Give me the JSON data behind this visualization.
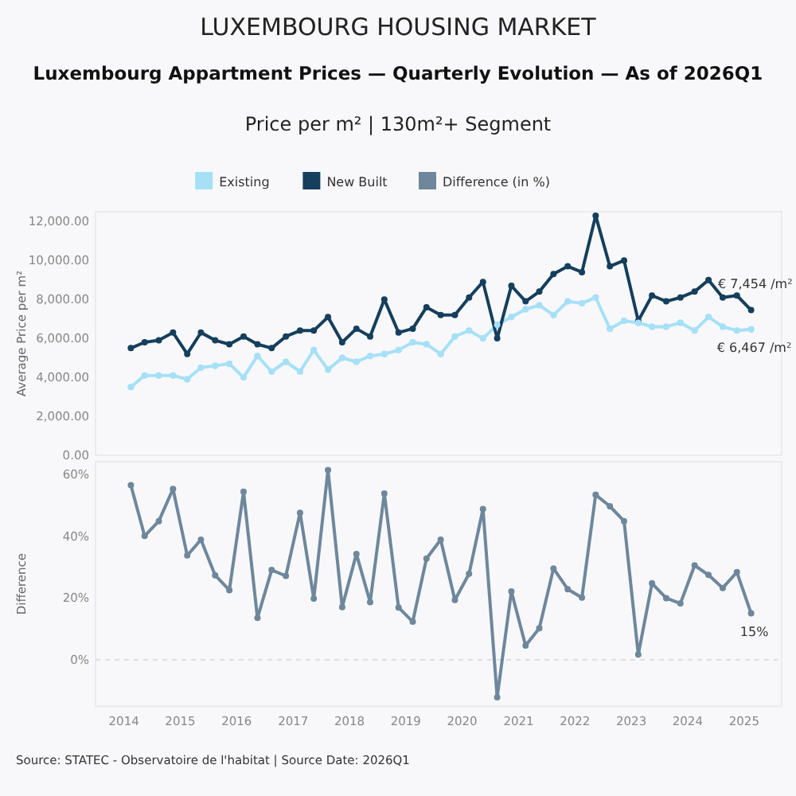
{
  "chart_data": [
    {
      "type": "line",
      "title": "LUXEMBOURG HOUSING MARKET",
      "subtitle": "Luxembourg Appartment Prices — Quarterly Evolution — As of 2026Q1",
      "annotations": [
        "Price per m² | 130m²+ Segment"
      ],
      "ylabel": "Average Price per m²",
      "legend": "top",
      "marker": "circle",
      "tick_labels": "y",
      "x": [
        "2014-02-15",
        "2014-05-15",
        "2014-08-15",
        "2014-11-15",
        "2015-02-15",
        "2015-05-15",
        "2015-08-15",
        "2015-11-15",
        "2016-02-15",
        "2016-05-15",
        "2016-08-15",
        "2016-11-15",
        "2017-02-15",
        "2017-05-15",
        "2017-08-15",
        "2017-11-15",
        "2018-02-15",
        "2018-05-15",
        "2018-08-15",
        "2018-11-15",
        "2019-02-15",
        "2019-05-15",
        "2019-08-15",
        "2019-11-15",
        "2020-02-15",
        "2020-05-15",
        "2020-08-15",
        "2020-11-15",
        "2021-02-15",
        "2021-05-15",
        "2021-08-15",
        "2021-11-15",
        "2022-02-15",
        "2022-05-15",
        "2022-08-15",
        "2022-11-15",
        "2023-02-15",
        "2023-05-15",
        "2023-08-15",
        "2023-11-15",
        "2024-02-15",
        "2024-05-15",
        "2024-08-15",
        "2024-11-15",
        "2025-02-15"
      ],
      "xlim": [
        "2013-07-01",
        "2025-09-01"
      ],
      "xticks": [
        "2014",
        "2015",
        "2016",
        "2017",
        "2018",
        "2019",
        "2020",
        "2021",
        "2022",
        "2023",
        "2024",
        "2025"
      ],
      "ylim": [
        0,
        12500
      ],
      "yticks": [
        {
          "value": 0,
          "label": "0.00"
        },
        {
          "value": 2000,
          "label": "2,000.00"
        },
        {
          "value": 4000,
          "label": "4,000.00"
        },
        {
          "value": 6000,
          "label": "6,000.00"
        },
        {
          "value": 8000,
          "label": "8,000.00"
        },
        {
          "value": 10000,
          "label": "10,000.00"
        },
        {
          "value": 12000,
          "label": "12,000.00"
        }
      ],
      "series": [
        {
          "name": "Existing",
          "color": "#a6e0f7",
          "values": [
            3500,
            4100,
            4100,
            4100,
            3900,
            4500,
            4600,
            4700,
            4000,
            5100,
            4300,
            4800,
            4300,
            5400,
            4400,
            5000,
            4800,
            5100,
            5200,
            5400,
            5800,
            5700,
            5200,
            6100,
            6400,
            6000,
            6700,
            7100,
            7500,
            7700,
            7200,
            7900,
            7800,
            8100,
            6500,
            6900,
            6800,
            6600,
            6600,
            6800,
            6400,
            7100,
            6600,
            6400,
            6467
          ],
          "value_labels": [
            null,
            null,
            null,
            null,
            null,
            null,
            null,
            null,
            null,
            null,
            null,
            null,
            null,
            null,
            null,
            null,
            null,
            null,
            null,
            null,
            null,
            null,
            null,
            null,
            null,
            null,
            null,
            null,
            null,
            null,
            null,
            null,
            null,
            null,
            null,
            null,
            null,
            null,
            null,
            null,
            null,
            null,
            null,
            null,
            "€ 6,467 /m²"
          ]
        },
        {
          "name": "New Built",
          "color": "#153f5c",
          "values": [
            5500,
            5800,
            5900,
            6300,
            5200,
            6300,
            5900,
            5700,
            6100,
            5700,
            5500,
            6100,
            6400,
            6400,
            7100,
            5800,
            6500,
            6100,
            8000,
            6300,
            6500,
            7600,
            7200,
            7200,
            8100,
            8900,
            6000,
            8700,
            7900,
            8400,
            9300,
            9700,
            9400,
            12300,
            9700,
            10000,
            6900,
            8200,
            7900,
            8100,
            8400,
            9000,
            8100,
            8200,
            7454
          ],
          "value_labels": [
            null,
            null,
            null,
            null,
            null,
            null,
            null,
            null,
            null,
            null,
            null,
            null,
            null,
            null,
            null,
            null,
            null,
            null,
            null,
            null,
            null,
            null,
            null,
            null,
            null,
            null,
            null,
            null,
            null,
            null,
            null,
            null,
            null,
            null,
            null,
            null,
            null,
            null,
            null,
            null,
            null,
            null,
            null,
            null,
            "€ 7,454 /m²"
          ]
        }
      ]
    },
    {
      "type": "line",
      "ylabel": "Difference",
      "legend": "top",
      "marker": "circle",
      "annotations": [
        "Source: STATEC - Observatoire de l'habitat | Source Date: 2026Q1"
      ],
      "x": [
        "2014-02-15",
        "2014-05-15",
        "2014-08-15",
        "2014-11-15",
        "2015-02-15",
        "2015-05-15",
        "2015-08-15",
        "2015-11-15",
        "2016-02-15",
        "2016-05-15",
        "2016-08-15",
        "2016-11-15",
        "2017-02-15",
        "2017-05-15",
        "2017-08-15",
        "2017-11-15",
        "2018-02-15",
        "2018-05-15",
        "2018-08-15",
        "2018-11-15",
        "2019-02-15",
        "2019-05-15",
        "2019-08-15",
        "2019-11-15",
        "2020-02-15",
        "2020-05-15",
        "2020-08-15",
        "2020-11-15",
        "2021-02-15",
        "2021-05-15",
        "2021-08-15",
        "2021-11-15",
        "2022-02-15",
        "2022-05-15",
        "2022-08-15",
        "2022-11-15",
        "2023-02-15",
        "2023-05-15",
        "2023-08-15",
        "2023-11-15",
        "2024-02-15",
        "2024-05-15",
        "2024-08-15",
        "2024-11-15",
        "2025-02-15"
      ],
      "xlim": [
        "2013-07-01",
        "2025-09-01"
      ],
      "xticks": [
        "2014",
        "2015",
        "2016",
        "2017",
        "2018",
        "2019",
        "2020",
        "2021",
        "2022",
        "2023",
        "2024",
        "2025"
      ],
      "ylim": [
        -15,
        64
      ],
      "yticks": [
        {
          "value": 0,
          "label": "0%"
        },
        {
          "value": 20,
          "label": "20%"
        },
        {
          "value": 40,
          "label": "40%"
        },
        {
          "value": 60,
          "label": "60%"
        }
      ],
      "ref_lines": [
        {
          "axis": "y",
          "value": 0,
          "color": "#dddddd",
          "line_style": "dashed"
        }
      ],
      "series": [
        {
          "name": "Difference (in %)",
          "color": "#6e879c",
          "values": [
            56.4,
            40,
            44.8,
            55.2,
            33.7,
            38.8,
            27.3,
            22.5,
            54.3,
            13.5,
            29,
            27.1,
            47.5,
            19.8,
            61.3,
            17,
            34.2,
            18.6,
            53.7,
            16.9,
            12.3,
            32.7,
            38.8,
            19.3,
            27.8,
            48.7,
            -12.1,
            22.1,
            4.6,
            10.2,
            29.5,
            22.8,
            20.1,
            53.3,
            49.6,
            44.8,
            1.7,
            24.7,
            19.9,
            18.2,
            30.5,
            27.4,
            23.2,
            28.3,
            15
          ],
          "value_labels": [
            null,
            null,
            null,
            null,
            null,
            null,
            null,
            null,
            null,
            null,
            null,
            null,
            null,
            null,
            null,
            null,
            null,
            null,
            null,
            null,
            null,
            null,
            null,
            null,
            null,
            null,
            null,
            null,
            null,
            null,
            null,
            null,
            null,
            null,
            null,
            null,
            null,
            null,
            null,
            null,
            null,
            null,
            null,
            null,
            "15%"
          ]
        }
      ]
    }
  ]
}
